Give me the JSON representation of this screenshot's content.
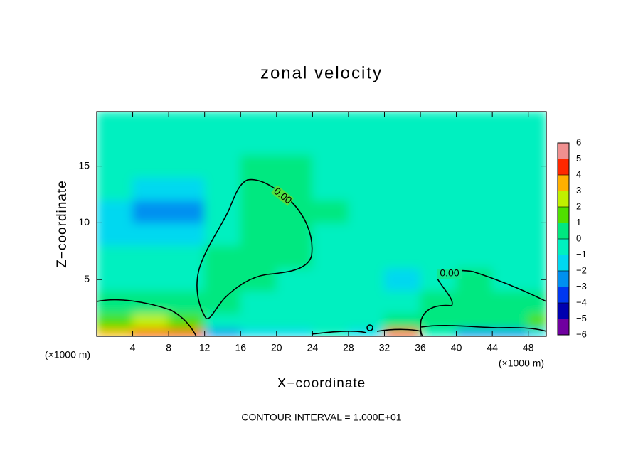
{
  "chart_data": {
    "type": "contour",
    "title": "zonal velocity",
    "x_label": "X−coordinate",
    "y_label": "Z−coordinate",
    "x_unit_labels": [
      "(×1000 m)",
      "(×1000 m)"
    ],
    "footer": "CONTOUR INTERVAL = 1.000E+01",
    "xlim": [
      0,
      50
    ],
    "ylim": [
      0,
      19.8
    ],
    "xticks": [
      4,
      8,
      12,
      16,
      20,
      24,
      28,
      32,
      36,
      40,
      44,
      48
    ],
    "yticks": [
      5,
      10,
      15
    ],
    "levels": [
      -6,
      -5,
      -4,
      -3,
      -2,
      -1,
      0,
      1,
      2,
      3,
      4,
      5,
      6
    ],
    "level_labels": [
      "−6",
      "−5",
      "−4",
      "−3",
      "−2",
      "−1",
      "0",
      "1",
      "2",
      "3",
      "4",
      "5",
      "6"
    ],
    "colormap": [
      "#7000a0",
      "#0000b0",
      "#0038f0",
      "#0090f0",
      "#00d8f0",
      "#00f0c0",
      "#00e880",
      "#50e000",
      "#c0f000",
      "#ffb000",
      "#ff2800",
      "#f09090"
    ],
    "contours": [
      {
        "level": 0,
        "label": "0.00"
      },
      {
        "level": 0,
        "label": "0.00"
      }
    ],
    "x": [
      2,
      6,
      10,
      14,
      18,
      22,
      26,
      30,
      34,
      38,
      42,
      46,
      50
    ],
    "y": [
      0.3,
      1,
      3,
      5,
      7,
      9,
      11,
      13,
      15,
      17,
      19
    ],
    "z": [
      [
        3.5,
        4,
        4.5,
        -2.5,
        -2,
        -1.5,
        -1,
        -1.5,
        4,
        -0.5,
        -2.5,
        -2.8,
        -2
      ],
      [
        1.5,
        2,
        1.2,
        -1,
        -0.8,
        -0.6,
        -0.5,
        -0.3,
        0.8,
        0.2,
        0.5,
        0.6,
        1
      ],
      [
        0.1,
        0.2,
        0.3,
        0.2,
        -0.3,
        -0.4,
        -0.5,
        -0.8,
        -0.7,
        0.3,
        0.5,
        0.3,
        0.1
      ],
      [
        -0.5,
        -0.4,
        -0.5,
        0.3,
        0.1,
        -0.2,
        -0.3,
        -0.5,
        -1.2,
        -0.2,
        0.1,
        -0.2,
        -0.5
      ],
      [
        -0.6,
        -0.7,
        -0.6,
        0.1,
        0.4,
        0.2,
        -0.2,
        -0.3,
        -0.4,
        -0.4,
        -0.5,
        -0.6,
        -0.7
      ],
      [
        -1.2,
        -2,
        -1.5,
        -0.3,
        0.6,
        0.4,
        -0.1,
        -0.2,
        -0.3,
        -0.4,
        -0.5,
        -0.6,
        -0.8
      ],
      [
        -1.6,
        -2.8,
        -2.6,
        -0.6,
        0.5,
        0.4,
        0,
        -0.2,
        -0.3,
        -0.4,
        -0.5,
        -0.6,
        -0.9
      ],
      [
        -0.8,
        -1.2,
        -1.3,
        -0.5,
        0.2,
        0.1,
        -0.1,
        -0.2,
        -0.3,
        -0.4,
        -0.5,
        -0.6,
        -1
      ],
      [
        -0.5,
        -0.4,
        -0.5,
        -0.2,
        0,
        0,
        -0.1,
        -0.3,
        -0.4,
        -0.5,
        -0.6,
        -0.8,
        -1
      ],
      [
        -0.4,
        -0.3,
        -0.2,
        -0.2,
        -0.1,
        -0.2,
        -0.3,
        -0.4,
        -0.6,
        -0.7,
        -0.8,
        -0.9,
        -1
      ],
      [
        -0.5,
        -0.3,
        -0.3,
        -0.3,
        -0.3,
        -0.4,
        -0.5,
        -0.6,
        -0.7,
        -0.8,
        -0.9,
        -1,
        -1
      ]
    ]
  }
}
